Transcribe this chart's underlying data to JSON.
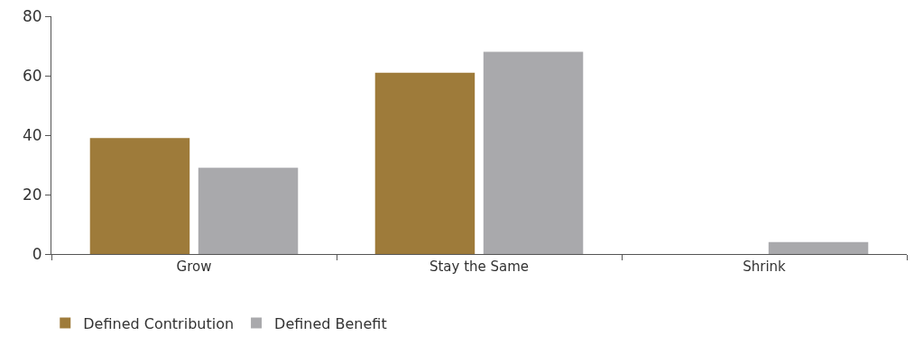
{
  "chart_data": {
    "type": "bar",
    "categories": [
      "Grow",
      "Stay the Same",
      "Shrink"
    ],
    "series": [
      {
        "name": "Defined Contribution",
        "color": "#9e7b3a",
        "values": [
          39,
          61,
          0
        ]
      },
      {
        "name": "Defined Benefit",
        "color": "#a9a9ac",
        "values": [
          29,
          68,
          4
        ]
      }
    ],
    "ylim": [
      0,
      80
    ],
    "yticks": [
      0,
      20,
      40,
      60,
      80
    ],
    "legend": "bottom left"
  }
}
